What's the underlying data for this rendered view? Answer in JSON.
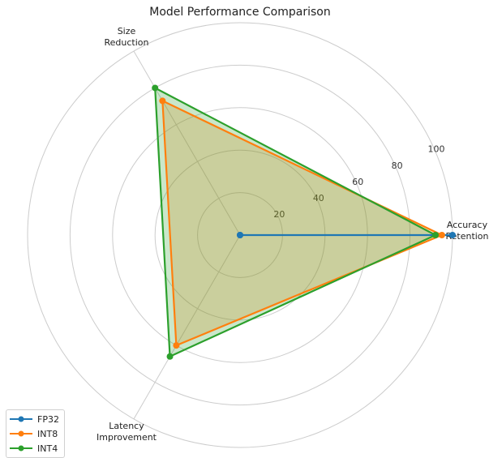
{
  "chart_data": {
    "type": "radar",
    "title": "Model Performance Comparison",
    "axes": [
      {
        "label_lines": [
          "Accuracy",
          "Retention"
        ]
      },
      {
        "label_lines": [
          "Size",
          "Reduction"
        ]
      },
      {
        "label_lines": [
          "Latency",
          "Improvement"
        ]
      }
    ],
    "radial_ticks": [
      20,
      40,
      60,
      80,
      100
    ],
    "rlim": [
      0,
      100
    ],
    "grid": true,
    "legend_position": "lower-left",
    "series": [
      {
        "name": "FP32",
        "color": "#1f77b4",
        "values": [
          100,
          0,
          0
        ],
        "fill": false
      },
      {
        "name": "INT8",
        "color": "#ff7f0e",
        "values": [
          95,
          73,
          60
        ],
        "fill": true
      },
      {
        "name": "INT4",
        "color": "#2ca02c",
        "values": [
          92,
          80,
          66
        ],
        "fill": true
      }
    ]
  }
}
